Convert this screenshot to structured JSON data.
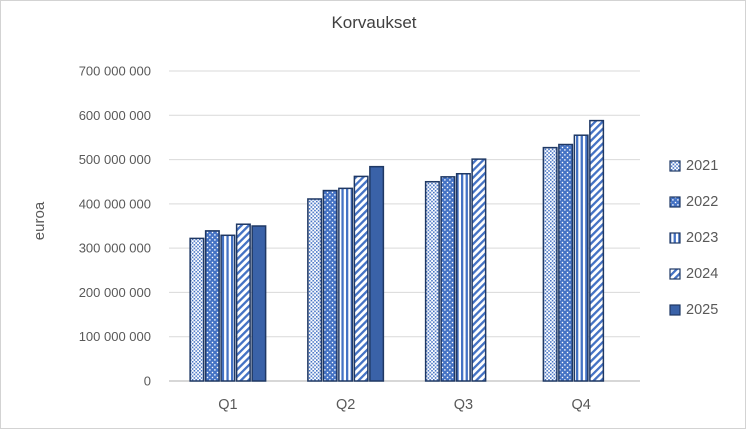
{
  "window": {
    "background": "#FFFFFF",
    "frame_border_color": "#D3D3D3"
  },
  "chart_data": {
    "type": "bar",
    "title": "Korvaukset",
    "xlabel": "",
    "ylabel": "euroa",
    "categories": [
      "Q1",
      "Q2",
      "Q3",
      "Q4"
    ],
    "series": [
      {
        "name": "2021",
        "style": "dots-on-white",
        "values": [
          322000000,
          411000000,
          450000000,
          527000000
        ]
      },
      {
        "name": "2022",
        "style": "white-dots-on-blue",
        "values": [
          339000000,
          430000000,
          461000000,
          534000000
        ]
      },
      {
        "name": "2023",
        "style": "vertical-stripes",
        "values": [
          329000000,
          435000000,
          468000000,
          555000000
        ]
      },
      {
        "name": "2024",
        "style": "diagonal-stripes",
        "values": [
          354000000,
          462000000,
          501000000,
          588000000
        ]
      },
      {
        "name": "2025",
        "style": "solid",
        "values": [
          350000000,
          484000000,
          null,
          null
        ]
      }
    ],
    "ylim": [
      0,
      700000000
    ],
    "ytick_step": 100000000,
    "ytick_labels": [
      "0",
      "100 000 000",
      "200 000 000",
      "300 000 000",
      "400 000 000",
      "500 000 000",
      "600 000 000",
      "700 000 000"
    ],
    "grid": true,
    "legend_position": "right",
    "colors": {
      "pattern_blue": "#4472C4",
      "solid_blue": "#3A62A8",
      "bar_border": "#1F3864",
      "pattern_background": "#FFFFFF",
      "gridline": "#D9D9D9",
      "axis_line": "#BFBFBF",
      "text": "#595959",
      "title_text": "#404040"
    }
  }
}
